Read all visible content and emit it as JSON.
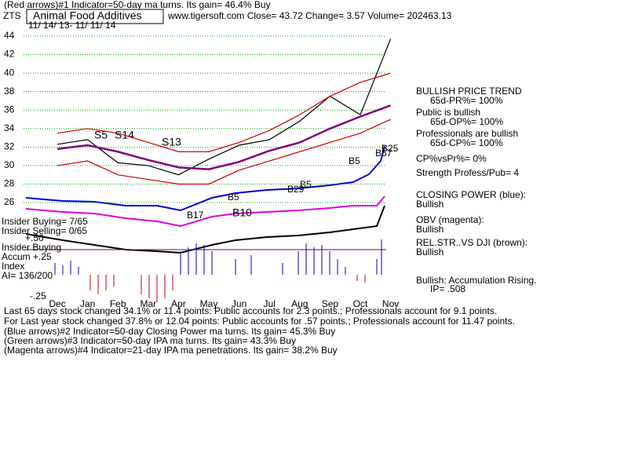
{
  "chart_data": {
    "type": "line",
    "ticker": "ZTS",
    "title": "Animal Food Additives",
    "header_top": "(Red arrows)#1 Indicator=50-day ma turns. Its gain= 46.4% Buy",
    "header_info": "www.tigersoft.com    Close=  43.72  Change= 3.57 Volume= 202463.13",
    "date_range": "11/ 14/ 13- 11/ 11/ 14",
    "categories": [
      "Dec",
      "Jan",
      "Feb",
      "Mar",
      "Apr",
      "May",
      "Jun",
      "Jul",
      "Aug",
      "Sep",
      "Oct",
      "Nov"
    ],
    "series": [
      {
        "color": "#000000",
        "values": [
          32.3,
          32.8,
          30.3,
          30.0,
          29.0,
          30.7,
          32.2,
          32.8,
          34.8,
          37.5,
          35.5,
          43.7
        ]
      },
      {
        "color": "#800080",
        "values": [
          31.8,
          32.2,
          31.5,
          30.6,
          29.8,
          29.6,
          30.4,
          31.6,
          32.5,
          34.0,
          35.3,
          36.5
        ]
      },
      {
        "color": "#cc0000",
        "values": [
          33.5,
          34.0,
          33.5,
          32.5,
          31.5,
          31.5,
          32.5,
          33.8,
          35.5,
          37.5,
          39.0,
          40.0
        ]
      },
      {
        "color": "#cc0000",
        "values": [
          30.0,
          30.5,
          29.0,
          28.5,
          28.0,
          28.0,
          29.5,
          30.5,
          31.5,
          32.5,
          33.5,
          35.0
        ]
      }
    ],
    "ylim": [
      24.5,
      44.5
    ],
    "yticks": [
      26,
      28,
      30,
      32,
      34,
      36,
      38,
      40,
      42,
      44
    ],
    "grid": true,
    "grid_color": "#00a000",
    "annotations": [
      "S5",
      "S14",
      "S13",
      "B17",
      "B10",
      "B5",
      "B29",
      "B5",
      "B5",
      "B57",
      "B25"
    ],
    "left_panel": [
      "Insider Buying= 7/65",
      "Insider Selling= 0/65",
      "+.50",
      "Insider Buying",
      "Accum  +.25",
      "Index",
      "AI= 136/200",
      "-.25"
    ],
    "right_panel": [
      "BULLISH PRICE TREND",
      "65d-PR%= 100%",
      "Public is bullish",
      "65d-OP%= 100%",
      "Professionals are bullish",
      "65d-CP%= 100%",
      "CP%vsPr%=  0%",
      "Strength Profess/Pub= 4",
      "CLOSING POWER (blue):",
      "Bullish",
      "OBV (magenta):",
      "Bullish",
      "REL.STR..VS DJI (brown):",
      "Bullish",
      "Bullish: Accumulation Rising.",
      "IP=  .508"
    ],
    "footer": [
      "Last 65 days stock changed  34.1% or  11.4 points:  Public accounts for  2.3 points.;  Professionals account for  9.1 points.",
      "For Last year stock changed  37.8% or  12.04 points:  Public accounts for  .57 points.;  Professionals account for  11.47 points.",
      "(Blue arrows)#2 Indicator=50-day Closing Power ma turns. Its gain= 45.3% Buy",
      "(Green arrows)#3 Indicator=50-day IPA ma turns. Its gain= 43.3% Buy",
      "(Magenta arrows)#4 Indicator=21-day IPA ma penetrations. Its gain= 38.2% Buy"
    ]
  }
}
